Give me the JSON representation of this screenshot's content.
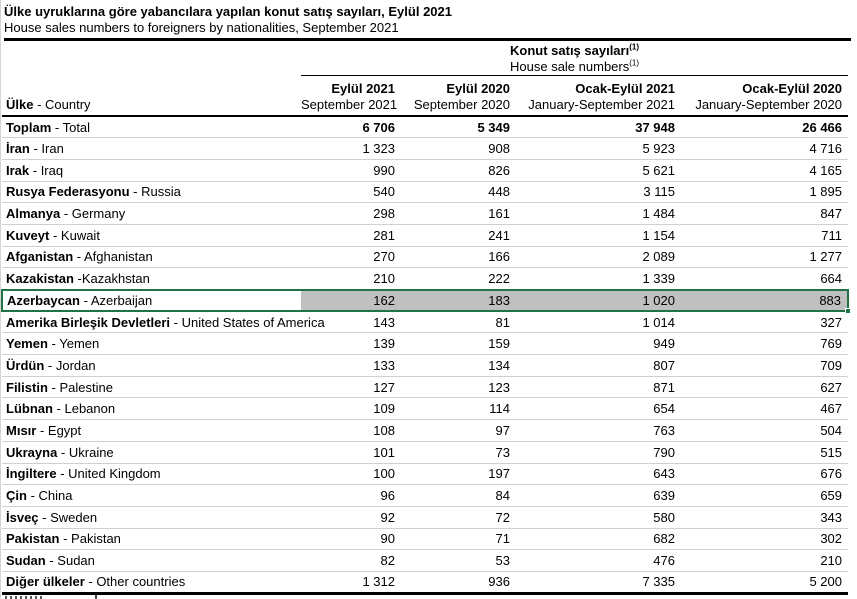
{
  "page": {
    "title_tr": "Ülke uyruklarına göre yabancılara yapılan konut satış sayıları, Eylül 2021",
    "title_en": "House sales numbers to foreigners by nationalities, September 2021"
  },
  "table": {
    "group_header": {
      "tr": "Konut satış sayıları",
      "en": "House sale numbers",
      "footnote_marker": "(1)"
    },
    "row_header": {
      "tr": "Ülke",
      "en": "Country",
      "sep": " - "
    },
    "columns": [
      {
        "tr": "Eylül 2021",
        "en": "September 2021"
      },
      {
        "tr": "Eylül 2020",
        "en": "September 2020"
      },
      {
        "tr": "Ocak-Eylül 2021",
        "en": "January-September 2021"
      },
      {
        "tr": "Ocak-Eylül 2020",
        "en": "January-September 2020"
      }
    ],
    "rows": [
      {
        "tr": "Toplam",
        "en": "Total",
        "sep": " - ",
        "bold": true,
        "values": [
          "6 706",
          "5 349",
          "37 948",
          "26 466"
        ]
      },
      {
        "tr": "İran",
        "en": "Iran",
        "sep": " - ",
        "values": [
          "1 323",
          "908",
          "5 923",
          "4 716"
        ]
      },
      {
        "tr": "Irak",
        "en": "Iraq",
        "sep": " - ",
        "values": [
          "990",
          "826",
          "5 621",
          "4 165"
        ]
      },
      {
        "tr": "Rusya Federasyonu",
        "en": "Russia",
        "sep": " - ",
        "values": [
          "540",
          "448",
          "3 115",
          "1 895"
        ]
      },
      {
        "tr": "Almanya",
        "en": "Germany",
        "sep": " - ",
        "values": [
          "298",
          "161",
          "1 484",
          "847"
        ]
      },
      {
        "tr": "Kuveyt",
        "en": "Kuwait",
        "sep": " - ",
        "values": [
          "281",
          "241",
          "1 154",
          "711"
        ]
      },
      {
        "tr": "Afganistan",
        "en": "Afghanistan",
        "sep": " - ",
        "values": [
          "270",
          "166",
          "2 089",
          "1 277"
        ]
      },
      {
        "tr": "Kazakistan",
        "en": "Kazakhstan",
        "sep": " -",
        "values": [
          "210",
          "222",
          "1 339",
          "664"
        ]
      },
      {
        "tr": "Azerbaycan",
        "en": "Azerbaijan",
        "sep": " - ",
        "selected": true,
        "values": [
          "162",
          "183",
          "1 020",
          "883"
        ]
      },
      {
        "tr": "Amerika Birleşik Devletleri",
        "en": "United States of America",
        "sep": " - ",
        "values": [
          "143",
          "81",
          "1 014",
          "327"
        ]
      },
      {
        "tr": "Yemen",
        "en": "Yemen",
        "sep": " - ",
        "values": [
          "139",
          "159",
          "949",
          "769"
        ]
      },
      {
        "tr": "Ürdün",
        "en": "Jordan",
        "sep": " - ",
        "values": [
          "133",
          "134",
          "807",
          "709"
        ]
      },
      {
        "tr": "Filistin",
        "en": "Palestine",
        "sep": " - ",
        "values": [
          "127",
          "123",
          "871",
          "627"
        ]
      },
      {
        "tr": "Lübnan",
        "en": "Lebanon",
        "sep": " - ",
        "values": [
          "109",
          "114",
          "654",
          "467"
        ]
      },
      {
        "tr": "Mısır",
        "en": "Egypt",
        "sep": " - ",
        "values": [
          "108",
          "97",
          "763",
          "504"
        ]
      },
      {
        "tr": "Ukrayna",
        "en": "Ukraine",
        "sep": " - ",
        "values": [
          "101",
          "73",
          "790",
          "515"
        ]
      },
      {
        "tr": "İngiltere",
        "en": "United Kingdom",
        "sep": " - ",
        "values": [
          "100",
          "197",
          "643",
          "676"
        ]
      },
      {
        "tr": "Çin",
        "en": "China",
        "sep": " - ",
        "values": [
          "96",
          "84",
          "639",
          "659"
        ]
      },
      {
        "tr": "İsveç",
        "en": "Sweden",
        "sep": " - ",
        "values": [
          "92",
          "72",
          "580",
          "343"
        ]
      },
      {
        "tr": "Pakistan",
        "en": "Pakistan",
        "sep": " - ",
        "values": [
          "90",
          "71",
          "682",
          "302"
        ]
      },
      {
        "tr": "Sudan",
        "en": "Sudan",
        "sep": " - ",
        "values": [
          "82",
          "53",
          "476",
          "210"
        ]
      },
      {
        "tr": "Diğer ülkeler",
        "en": "Other countries",
        "sep": " - ",
        "values": [
          "1 312",
          "936",
          "7 335",
          "5 200"
        ]
      }
    ],
    "selection": {
      "border_color": "#217346",
      "fill_color": "#c0c0c0",
      "selected_country": "Azerbaycan"
    }
  }
}
